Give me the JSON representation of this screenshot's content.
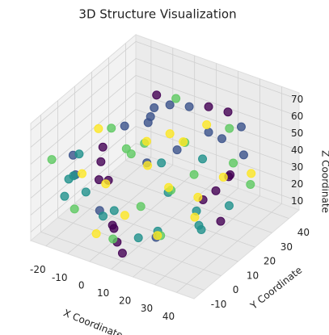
{
  "chart_data": {
    "type": "scatter3d",
    "title": "3D Structure Visualization",
    "xlabel": "X Coordinate",
    "ylabel": "Y Coordinate",
    "zlabel": "Z Coordinate",
    "xlim": [
      -27,
      48
    ],
    "ylim": [
      -16,
      46
    ],
    "zlim": [
      5,
      74
    ],
    "xticks": [
      -20,
      -10,
      0,
      10,
      20,
      30,
      40
    ],
    "yticks": [
      -10,
      0,
      10,
      20,
      30,
      40
    ],
    "zticks": [
      10,
      20,
      30,
      40,
      50,
      60,
      70
    ],
    "grid": true,
    "series": [
      {
        "color": "#440154",
        "x": [
          -15,
          -12,
          -18,
          -10,
          5,
          8,
          2,
          30,
          32,
          28,
          35,
          20,
          15,
          -5,
          40,
          12
        ],
        "y": [
          10,
          5,
          15,
          8,
          -8,
          -10,
          -5,
          20,
          25,
          15,
          22,
          40,
          35,
          30,
          10,
          -12
        ],
        "z": [
          35,
          30,
          38,
          28,
          20,
          15,
          18,
          30,
          35,
          28,
          40,
          55,
          60,
          62,
          25,
          12
        ]
      },
      {
        "color": "#3b528b",
        "x": [
          0,
          5,
          10,
          -8,
          20,
          25,
          -20,
          -15,
          15,
          30,
          -5,
          10,
          35,
          0,
          22,
          -10
        ],
        "y": [
          20,
          25,
          30,
          15,
          10,
          30,
          0,
          -5,
          35,
          35,
          25,
          5,
          30,
          -10,
          -5,
          35
        ],
        "z": [
          60,
          65,
          62,
          55,
          58,
          50,
          45,
          40,
          45,
          55,
          50,
          50,
          45,
          30,
          20,
          48
        ]
      },
      {
        "color": "#21918c",
        "x": [
          -20,
          -22,
          -18,
          10,
          15,
          0,
          25,
          30,
          5,
          -12,
          20,
          40,
          35,
          -5,
          12,
          -25
        ],
        "y": [
          -5,
          0,
          5,
          0,
          5,
          -8,
          15,
          10,
          20,
          -10,
          25,
          15,
          5,
          5,
          15,
          10
        ],
        "z": [
          25,
          30,
          20,
          10,
          12,
          25,
          20,
          18,
          35,
          45,
          40,
          30,
          22,
          15,
          25,
          35
        ]
      },
      {
        "color": "#5ec962",
        "x": [
          -22,
          -18,
          5,
          15,
          25,
          38,
          10,
          -10,
          30,
          0,
          20,
          -5,
          42,
          8,
          -15,
          28
        ],
        "y": [
          -10,
          20,
          10,
          -5,
          0,
          20,
          -15,
          -12,
          28,
          35,
          20,
          15,
          25,
          30,
          25,
          -10
        ],
        "z": [
          50,
          45,
          55,
          35,
          45,
          50,
          22,
          28,
          60,
          58,
          35,
          40,
          35,
          40,
          30,
          28
        ]
      },
      {
        "color": "#fde725",
        "x": [
          -12,
          10,
          20,
          35,
          5,
          15,
          -5,
          28,
          0,
          40,
          18,
          -20,
          25,
          8,
          32,
          -8
        ],
        "y": [
          -5,
          -8,
          5,
          18,
          25,
          20,
          0,
          12,
          -12,
          28,
          30,
          15,
          -8,
          8,
          5,
          28
        ],
        "z": [
          42,
          30,
          40,
          42,
          48,
          52,
          35,
          32,
          18,
          38,
          55,
          48,
          25,
          45,
          28,
          35
        ]
      }
    ]
  }
}
